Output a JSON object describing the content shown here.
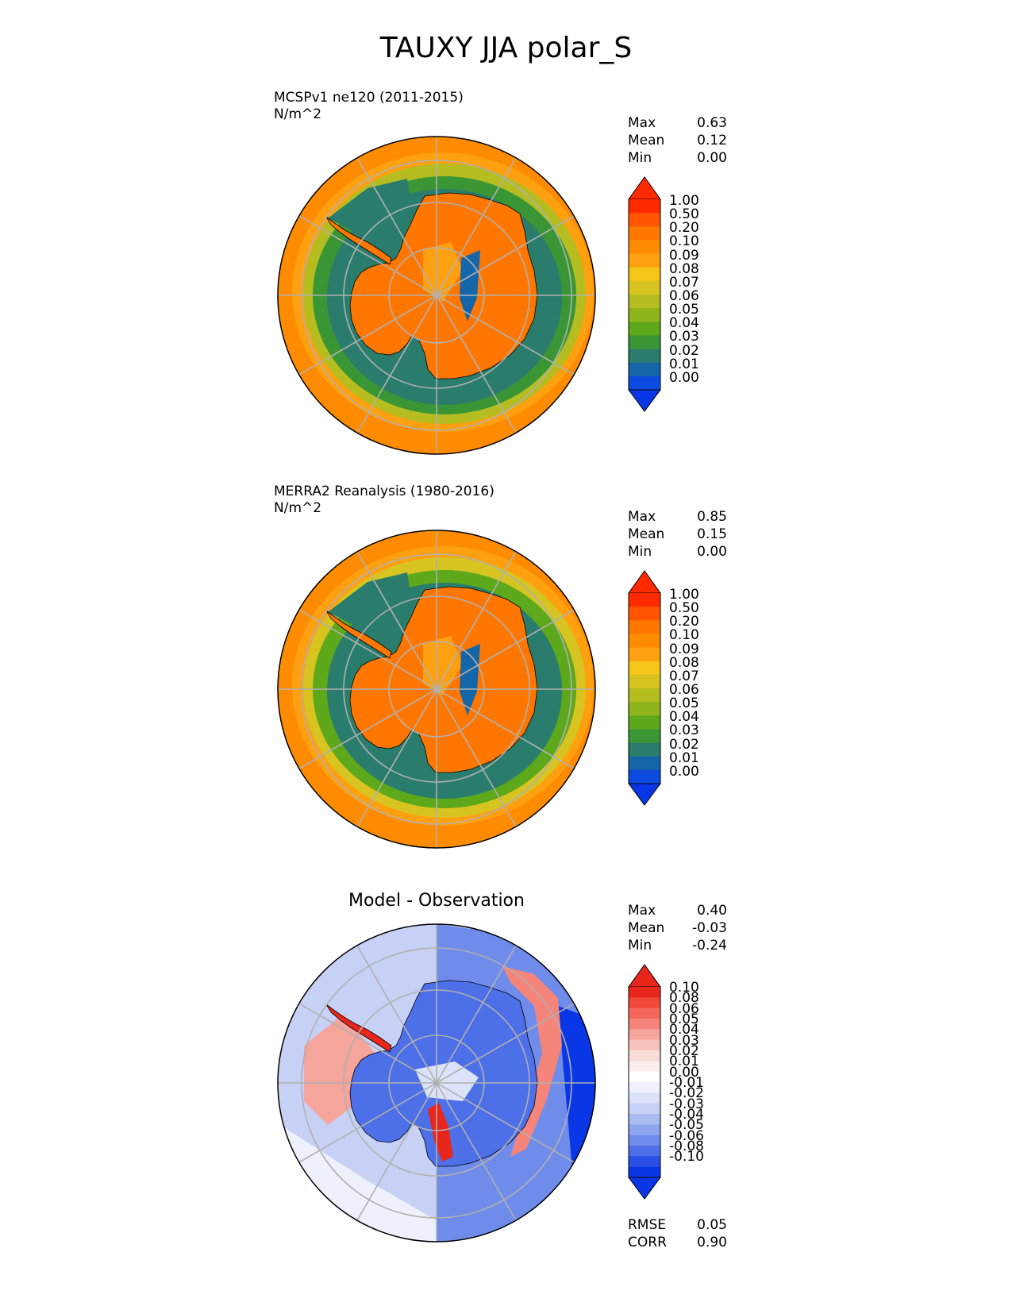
{
  "figure": {
    "title": "TAUXY JJA polar_S"
  },
  "panels": [
    {
      "id": "test",
      "title_line1": "MCSPv1 ne120 (2011-2015)",
      "title_line2": "N/m^2",
      "center_title": "",
      "stats": [
        {
          "label": "Max",
          "value": "0.63"
        },
        {
          "label": "Mean",
          "value": "0.12"
        },
        {
          "label": "Min",
          "value": "0.00"
        }
      ],
      "colorbar_labels": [
        "1.00",
        "0.50",
        "0.20",
        "0.10",
        "0.09",
        "0.08",
        "0.07",
        "0.06",
        "0.05",
        "0.04",
        "0.03",
        "0.02",
        "0.01",
        "0.00"
      ]
    },
    {
      "id": "reference",
      "title_line1": "MERRA2 Reanalysis (1980-2016)",
      "title_line2": "N/m^2",
      "center_title": "",
      "stats": [
        {
          "label": "Max",
          "value": "0.85"
        },
        {
          "label": "Mean",
          "value": "0.15"
        },
        {
          "label": "Min",
          "value": "0.00"
        }
      ],
      "colorbar_labels": [
        "1.00",
        "0.50",
        "0.20",
        "0.10",
        "0.09",
        "0.08",
        "0.07",
        "0.06",
        "0.05",
        "0.04",
        "0.03",
        "0.02",
        "0.01",
        "0.00"
      ]
    },
    {
      "id": "diff",
      "title_line1": "",
      "title_line2": "",
      "center_title": "Model - Observation",
      "stats": [
        {
          "label": "Max",
          "value": "0.40"
        },
        {
          "label": "Mean",
          "value": "-0.03"
        },
        {
          "label": "Min",
          "value": "-0.24"
        }
      ],
      "colorbar_labels": [
        "0.10",
        "0.08",
        "0.06",
        "0.05",
        "0.04",
        "0.03",
        "0.02",
        "0.01",
        "0.00",
        "-0.01",
        "-0.02",
        "-0.03",
        "-0.04",
        "-0.05",
        "-0.06",
        "-0.08",
        "-0.10"
      ],
      "metrics": [
        {
          "label": "RMSE",
          "value": "0.05"
        },
        {
          "label": "CORR",
          "value": "0.90"
        }
      ]
    }
  ],
  "colors": {
    "seq": [
      "#ff2a00",
      "#ff5500",
      "#ff7700",
      "#ff8c00",
      "#ffa010",
      "#f5c518",
      "#d7c420",
      "#b5bd20",
      "#8fb51a",
      "#5ea81c",
      "#3a9634",
      "#2a7d6c",
      "#1566a8",
      "#0b4be0"
    ],
    "div": [
      "#e8261c",
      "#f04a3a",
      "#f5675a",
      "#f5857a",
      "#f5a59c",
      "#f7c2bb",
      "#f9dcd8",
      "#fbeeec",
      "#ffffff",
      "#eef1fb",
      "#dce3f8",
      "#c6d1f5",
      "#aabcf2",
      "#8ea6ef",
      "#6f8ceb",
      "#4d6fe8",
      "#2a50e6",
      "#0a37e6"
    ],
    "seq_under": "#0a37e6",
    "seq_over": "#ff2a00",
    "div_under": "#0a37e6",
    "div_over": "#e8261c"
  },
  "chart_data": [
    {
      "type": "heatmap",
      "title": "MCSPv1 ne120 (2011-2015)",
      "units": "N/m^2",
      "projection": "south polar stereographic",
      "levels": [
        0.0,
        0.01,
        0.02,
        0.03,
        0.04,
        0.05,
        0.06,
        0.07,
        0.08,
        0.09,
        0.1,
        0.2,
        0.5,
        1.0
      ],
      "max": 0.63,
      "mean": 0.12,
      "min": 0.0
    },
    {
      "type": "heatmap",
      "title": "MERRA2 Reanalysis (1980-2016)",
      "units": "N/m^2",
      "projection": "south polar stereographic",
      "levels": [
        0.0,
        0.01,
        0.02,
        0.03,
        0.04,
        0.05,
        0.06,
        0.07,
        0.08,
        0.09,
        0.1,
        0.2,
        0.5,
        1.0
      ],
      "max": 0.85,
      "mean": 0.15,
      "min": 0.0
    },
    {
      "type": "heatmap",
      "title": "Model - Observation",
      "projection": "south polar stereographic",
      "levels": [
        -0.1,
        -0.08,
        -0.06,
        -0.05,
        -0.04,
        -0.03,
        -0.02,
        -0.01,
        0.0,
        0.01,
        0.02,
        0.03,
        0.04,
        0.05,
        0.06,
        0.08,
        0.1
      ],
      "max": 0.4,
      "mean": -0.03,
      "min": -0.24,
      "rmse": 0.05,
      "corr": 0.9
    }
  ]
}
